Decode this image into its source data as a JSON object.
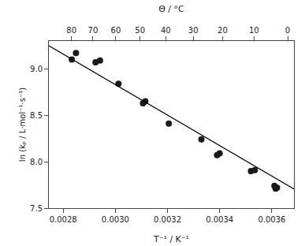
{
  "chart_data": {
    "type": "scatter",
    "xlabel": "T⁻¹ / K⁻¹",
    "ylabel": "ln (kₚ / L·mol⁻¹·s⁻¹)",
    "x2label": "Θ / °C",
    "xlim": [
      0.002745,
      0.003685
    ],
    "ylim": [
      7.5,
      9.3
    ],
    "x2lim": [
      0.002745,
      0.003685
    ],
    "xticks": [
      0.0028,
      {
        "value": 0.003,
        "label": "0.0030"
      },
      0.0032,
      0.0034,
      0.0036
    ],
    "yticks": [
      7.5,
      {
        "value": 8,
        "label": "8.0"
      },
      8.5,
      {
        "value": 9,
        "label": "9.0"
      }
    ],
    "x2ticks": [
      {
        "value": 0.00283165794,
        "label": "80"
      },
      {
        "value": 0.0029141775,
        "label": "70"
      },
      {
        "value": 0.00300165091,
        "label": "60"
      },
      {
        "value": 0.0030945381,
        "label": "50"
      },
      {
        "value": 0.003193358,
        "label": "40"
      },
      {
        "value": 0.00329869702,
        "label": "30"
      },
      {
        "value": 0.0034112229,
        "label": "20"
      },
      {
        "value": 0.003531697,
        "label": "10"
      },
      {
        "value": 0.0036609921,
        "label": "0"
      }
    ],
    "grid": false,
    "series": [
      {
        "type": "scatter",
        "marker": "circle",
        "color": "#1a1a1a",
        "x": [
          0.002833,
          0.002849,
          0.002924,
          0.002941,
          0.003012,
          0.003106,
          0.003115,
          0.003205,
          0.00333,
          0.00339,
          0.0034,
          0.00352,
          0.003535,
          0.00361,
          0.003615,
          0.00362
        ],
        "values": [
          9.1,
          9.17,
          9.07,
          9.09,
          8.84,
          8.63,
          8.65,
          8.41,
          8.24,
          8.07,
          8.09,
          7.9,
          7.91,
          7.74,
          7.71,
          7.72
        ]
      },
      {
        "type": "line",
        "line_style": "solid",
        "color": "#000000",
        "x": [
          0.002745,
          0.003685
        ],
        "values": [
          9.2482,
          7.7066
        ]
      }
    ]
  }
}
